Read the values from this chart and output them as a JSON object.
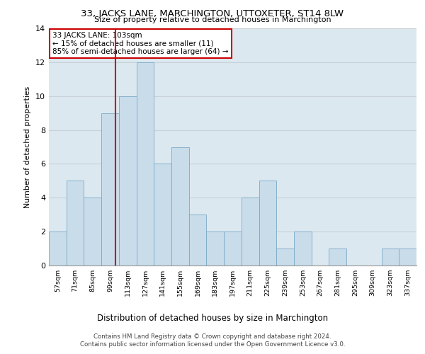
{
  "title": "33, JACKS LANE, MARCHINGTON, UTTOXETER, ST14 8LW",
  "subtitle": "Size of property relative to detached houses in Marchington",
  "xlabel": "Distribution of detached houses by size in Marchington",
  "ylabel": "Number of detached properties",
  "categories": [
    "57sqm",
    "71sqm",
    "85sqm",
    "99sqm",
    "113sqm",
    "127sqm",
    "141sqm",
    "155sqm",
    "169sqm",
    "183sqm",
    "197sqm",
    "211sqm",
    "225sqm",
    "239sqm",
    "253sqm",
    "267sqm",
    "281sqm",
    "295sqm",
    "309sqm",
    "323sqm",
    "337sqm"
  ],
  "values": [
    2,
    5,
    4,
    9,
    10,
    12,
    6,
    7,
    3,
    2,
    2,
    4,
    5,
    1,
    2,
    0,
    1,
    0,
    0,
    1,
    1
  ],
  "bar_color": "#c9dcea",
  "bar_edge_color": "#7aaac8",
  "annotation_text": "33 JACKS LANE: 103sqm\n← 15% of detached houses are smaller (11)\n85% of semi-detached houses are larger (64) →",
  "annotation_box_color": "#ffffff",
  "annotation_box_edge_color": "#cc0000",
  "vline_color": "#cc0000",
  "ylim": [
    0,
    14
  ],
  "yticks": [
    0,
    2,
    4,
    6,
    8,
    10,
    12,
    14
  ],
  "grid_color": "#c8d0d8",
  "bg_color": "#dce8f0",
  "footer_line1": "Contains HM Land Registry data © Crown copyright and database right 2024.",
  "footer_line2": "Contains public sector information licensed under the Open Government Licence v3.0."
}
